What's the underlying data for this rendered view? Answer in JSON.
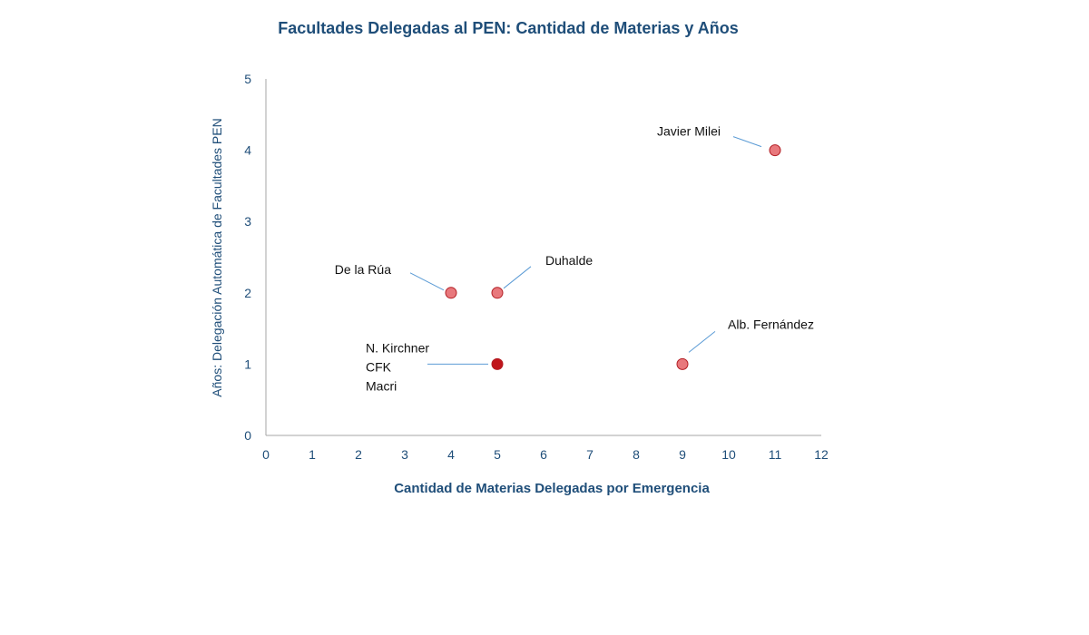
{
  "chart_data": {
    "type": "scatter",
    "title": "Facultades Delegadas al PEN: Cantidad de Materias y Años",
    "xlabel": "Cantidad de Materias Delegadas por Emergencia",
    "ylabel": "Años: Delegación Automática de Facultades PEN",
    "xlim": [
      0,
      12
    ],
    "ylim": [
      0,
      5
    ],
    "xticks": [
      "0",
      "1",
      "2",
      "3",
      "4",
      "5",
      "6",
      "7",
      "8",
      "9",
      "10",
      "11",
      "12"
    ],
    "yticks": [
      "0",
      "1",
      "2",
      "3",
      "4",
      "5"
    ],
    "grid": false,
    "points": [
      {
        "x": 4,
        "y": 2,
        "label": [
          "De la Rúa"
        ],
        "color": "#e8787c"
      },
      {
        "x": 5,
        "y": 2,
        "label": [
          "Duhalde"
        ],
        "color": "#e8787c"
      },
      {
        "x": 5,
        "y": 1,
        "label": [
          "N. Kirchner",
          "CFK",
          "Macri"
        ],
        "color": "#c0151b"
      },
      {
        "x": 9,
        "y": 1,
        "label": [
          "Alb. Fernández"
        ],
        "color": "#e8787c"
      },
      {
        "x": 11,
        "y": 4,
        "label": [
          "Javier Milei"
        ],
        "color": "#e8787c"
      }
    ],
    "colors": {
      "title": "#1f4e79",
      "axis": "#a6a6a6",
      "leader": "#5b9bd5"
    }
  }
}
